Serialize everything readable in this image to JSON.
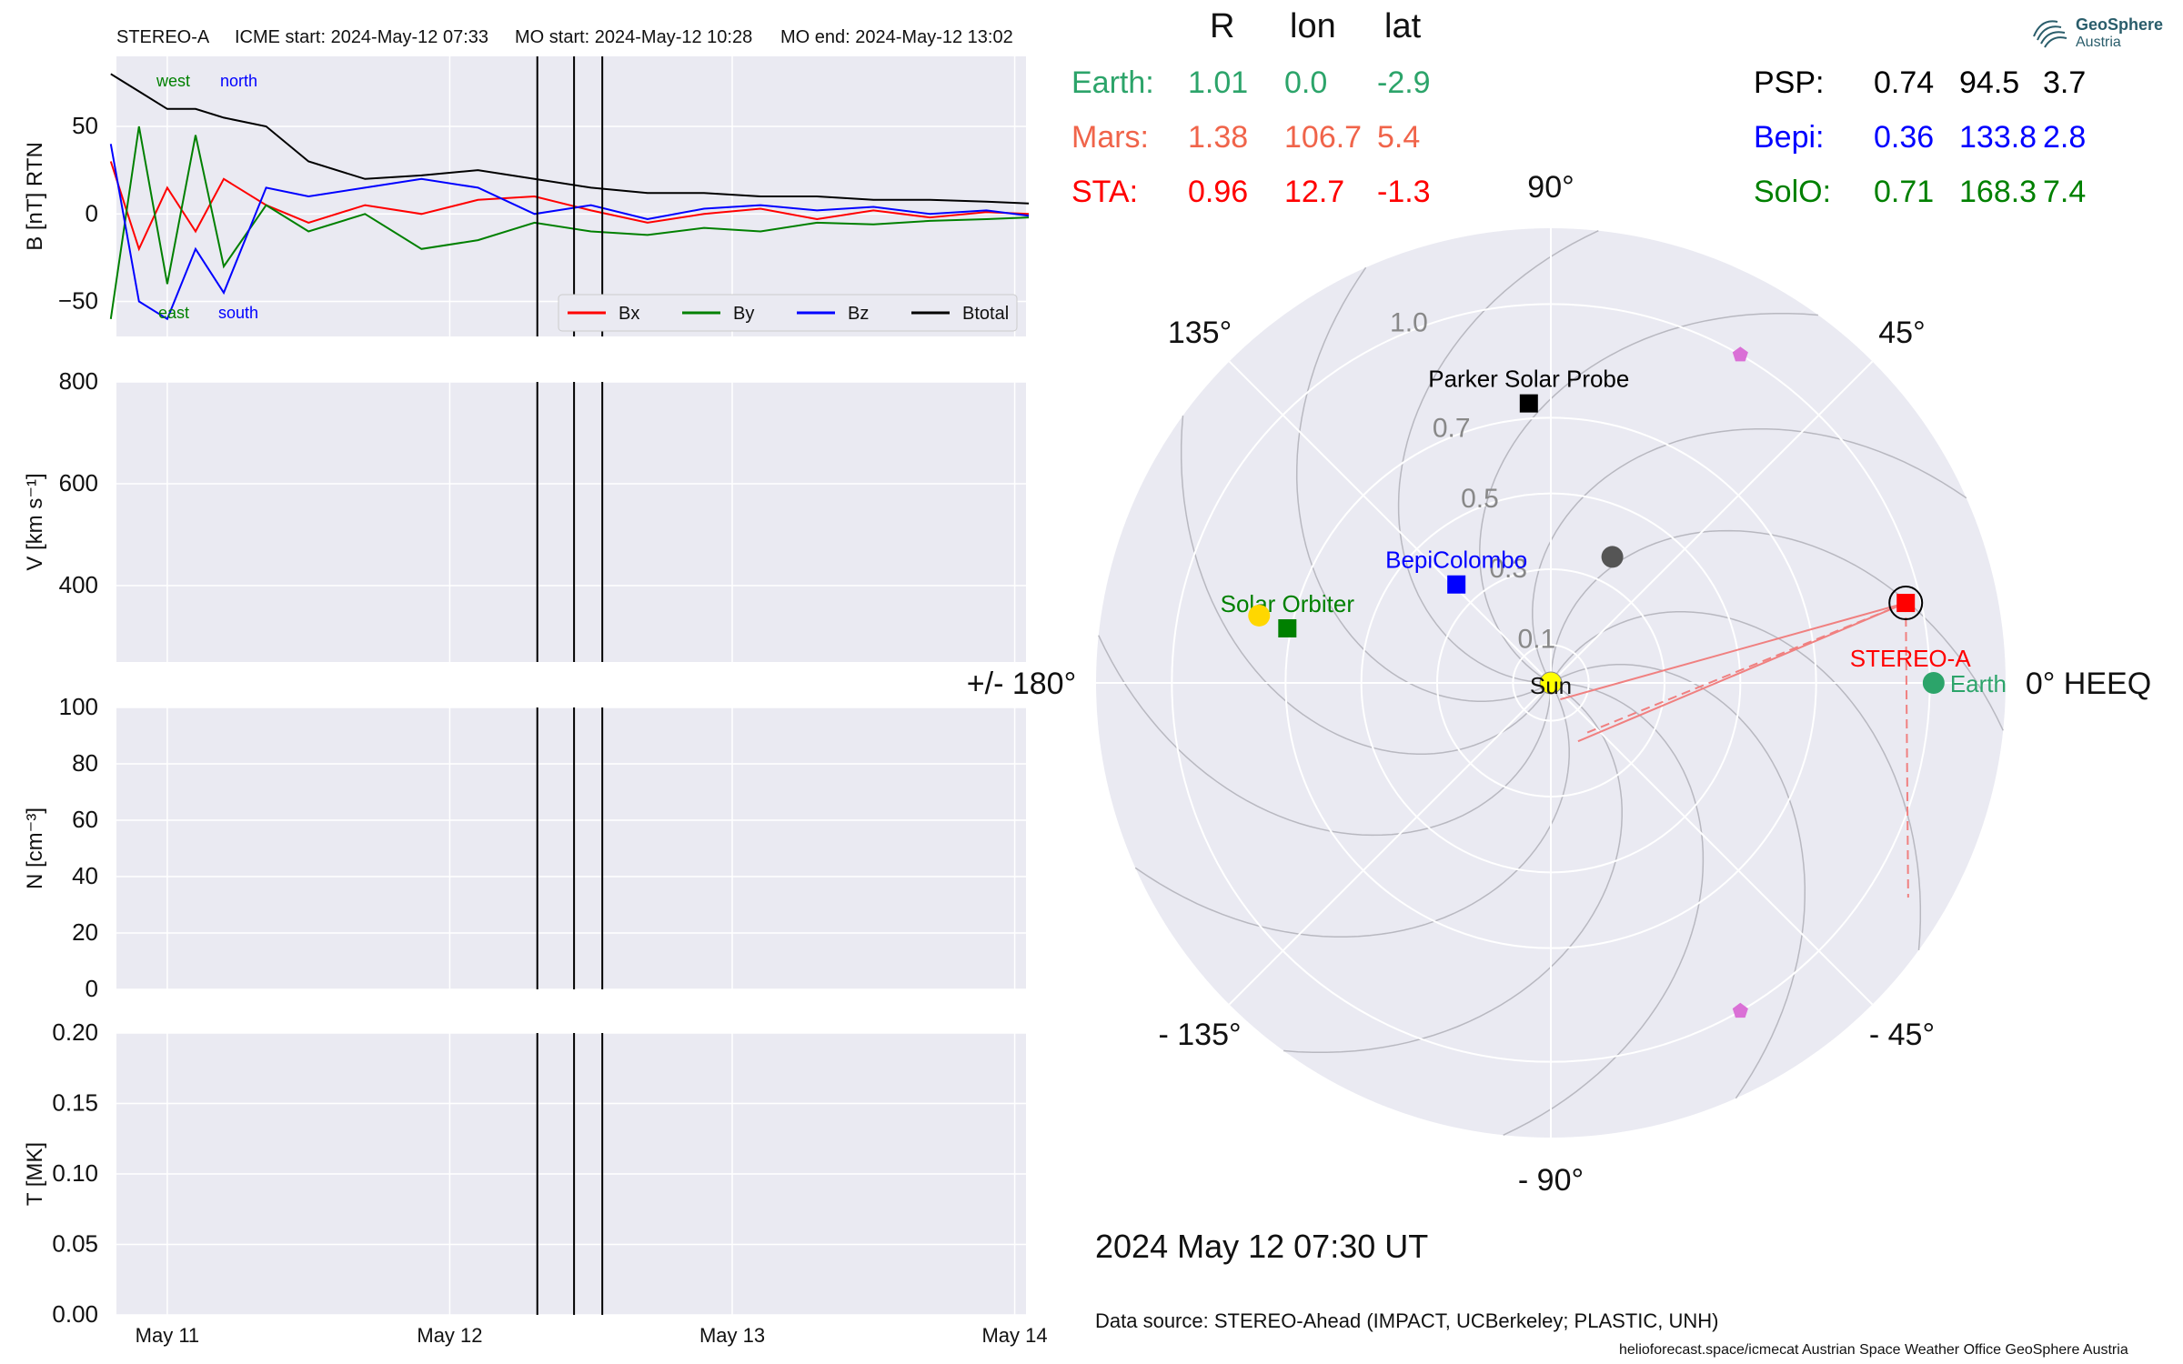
{
  "header": {
    "spacecraft": "STEREO-A",
    "icme_start": "ICME start: 2024-May-12 07:33",
    "mo_start": "MO start: 2024-May-12 10:28",
    "mo_end": "MO end: 2024-May-12 13:02"
  },
  "columns": {
    "r": "R",
    "lon": "lon",
    "lat": "lat"
  },
  "positions": [
    {
      "name": "Earth:",
      "r": "1.01",
      "lon": "0.0",
      "lat": "-2.9",
      "color": "#2ca46a"
    },
    {
      "name": "Mars:",
      "r": "1.38",
      "lon": "106.7",
      "lat": "5.4",
      "color": "#f0644a"
    },
    {
      "name": "STA:",
      "r": "0.96",
      "lon": "12.7",
      "lat": "-1.3",
      "color": "#ff0000"
    },
    {
      "name": "PSP:",
      "r": "0.74",
      "lon": "94.5",
      "lat": "3.7",
      "color": "#000000"
    },
    {
      "name": "Bepi:",
      "r": "0.36",
      "lon": "133.8",
      "lat": "2.8",
      "color": "#0000ff"
    },
    {
      "name": "SolO:",
      "r": "0.71",
      "lon": "168.3",
      "lat": "7.4",
      "color": "#008000"
    }
  ],
  "logo": {
    "line1": "GeoSphere",
    "line2": "Austria"
  },
  "timestamp": "2024 May 12  07:30 UT",
  "data_source": "Data source: STEREO-Ahead (IMPACT, UCBerkeley; PLASTIC, UNH)",
  "footer": "helioforecast.space/icmecat   Austrian Space Weather Office   GeoSphere Austria",
  "chart_data": [
    {
      "type": "line",
      "ylabel": "B [nT] RTN",
      "ylim": [
        -70,
        90
      ],
      "yticks": [
        "50",
        "0",
        "−50"
      ],
      "x_ticks": [
        "May 11",
        "May 12",
        "May 13",
        "May 14"
      ],
      "annotations": {
        "west": "west",
        "north": "north",
        "east": "east",
        "south": "south"
      },
      "legend": {
        "position": "lower-right",
        "entries": [
          "Bx",
          "By",
          "Bz",
          "Btotal"
        ]
      },
      "series": [
        {
          "name": "Bx",
          "color": "#ff0000",
          "x": [
            10.8,
            10.9,
            11.0,
            11.1,
            11.2,
            11.35,
            11.5,
            11.7,
            11.9,
            12.1,
            12.3,
            12.5,
            12.7,
            12.9,
            13.1,
            13.3,
            13.5,
            13.7,
            13.9,
            14.05
          ],
          "values": [
            30,
            -20,
            15,
            -10,
            20,
            5,
            -5,
            5,
            0,
            8,
            10,
            2,
            -5,
            0,
            3,
            -3,
            2,
            -2,
            1,
            0
          ]
        },
        {
          "name": "By",
          "color": "#008000",
          "x": [
            10.8,
            10.9,
            11.0,
            11.1,
            11.2,
            11.35,
            11.5,
            11.7,
            11.9,
            12.1,
            12.3,
            12.5,
            12.7,
            12.9,
            13.1,
            13.3,
            13.5,
            13.7,
            13.9,
            14.05
          ],
          "values": [
            -60,
            50,
            -40,
            45,
            -30,
            5,
            -10,
            0,
            -20,
            -15,
            -5,
            -10,
            -12,
            -8,
            -10,
            -5,
            -6,
            -4,
            -3,
            -2
          ]
        },
        {
          "name": "Bz",
          "color": "#0000ff",
          "x": [
            10.8,
            10.9,
            11.0,
            11.1,
            11.2,
            11.35,
            11.5,
            11.7,
            11.9,
            12.1,
            12.3,
            12.5,
            12.7,
            12.9,
            13.1,
            13.3,
            13.5,
            13.7,
            13.9,
            14.05
          ],
          "values": [
            40,
            -50,
            -60,
            -20,
            -45,
            15,
            10,
            15,
            20,
            15,
            0,
            5,
            -3,
            3,
            5,
            2,
            4,
            0,
            2,
            -1
          ]
        },
        {
          "name": "Btotal",
          "color": "#000000",
          "x": [
            10.8,
            10.9,
            11.0,
            11.1,
            11.2,
            11.35,
            11.5,
            11.7,
            11.9,
            12.1,
            12.3,
            12.5,
            12.7,
            12.9,
            13.1,
            13.3,
            13.5,
            13.7,
            13.9,
            14.05
          ],
          "values": [
            80,
            70,
            60,
            60,
            55,
            50,
            30,
            20,
            22,
            25,
            20,
            15,
            12,
            12,
            10,
            10,
            8,
            8,
            7,
            6
          ]
        }
      ],
      "vlines": [
        12.31,
        12.44,
        12.54
      ]
    },
    {
      "type": "line",
      "ylabel": "V [km s⁻¹]",
      "ylim": [
        250,
        800
      ],
      "yticks": [
        "800",
        "600",
        "400"
      ],
      "x_ticks": [
        "May 11",
        "May 12",
        "May 13",
        "May 14"
      ],
      "series": [],
      "vlines": [
        12.31,
        12.44,
        12.54
      ]
    },
    {
      "type": "line",
      "ylabel": "N [cm⁻³]",
      "ylim": [
        0,
        100
      ],
      "yticks": [
        "100",
        "80",
        "60",
        "40",
        "20",
        "0"
      ],
      "x_ticks": [
        "May 11",
        "May 12",
        "May 13",
        "May 14"
      ],
      "series": [],
      "vlines": [
        12.31,
        12.44,
        12.54
      ]
    },
    {
      "type": "line",
      "ylabel": "T [MK]",
      "ylim": [
        0,
        0.2
      ],
      "yticks": [
        "0.20",
        "0.15",
        "0.10",
        "0.05",
        "0.00"
      ],
      "x_ticks": [
        "May 11",
        "May 12",
        "May 13",
        "May 14"
      ],
      "series": [],
      "vlines": [
        12.31,
        12.44,
        12.54
      ]
    },
    {
      "type": "scatter",
      "projection": "polar",
      "angle_labels": [
        "90°",
        "45°",
        "0° HEEQ",
        "- 45°",
        "- 90°",
        "- 135°",
        "+/- 180°",
        "135°"
      ],
      "radial_labels": [
        "0.1",
        "0.3",
        "0.5",
        "0.7",
        "1.0"
      ],
      "bodies": [
        {
          "label": "Sun",
          "r": 0,
          "lon": 0,
          "color": "#ffff00",
          "marker": "circle"
        },
        {
          "label": "Earth",
          "r": 1.01,
          "lon": 0.0,
          "color": "#2ca46a",
          "marker": "circle"
        },
        {
          "label": "STEREO-A",
          "r": 0.96,
          "lon": 12.7,
          "color": "#ff0000",
          "marker": "square"
        },
        {
          "label": "Parker Solar Probe",
          "r": 0.74,
          "lon": 94.5,
          "color": "#000000",
          "marker": "square"
        },
        {
          "label": "BepiColombo",
          "r": 0.36,
          "lon": 133.8,
          "color": "#0000ff",
          "marker": "square"
        },
        {
          "label": "Solar Orbiter",
          "r": 0.71,
          "lon": 168.3,
          "color": "#008000",
          "marker": "square"
        },
        {
          "label": "",
          "r": 0.79,
          "lon": 167.0,
          "color": "#ffd700",
          "marker": "circle"
        },
        {
          "label": "",
          "r": 0.37,
          "lon": 64.0,
          "color": "#555555",
          "marker": "circle"
        },
        {
          "label": "",
          "r": 1.0,
          "lon": 60.0,
          "color": "#da70d6",
          "marker": "pentagon"
        },
        {
          "label": "",
          "r": 1.0,
          "lon": -60.0,
          "color": "#da70d6",
          "marker": "pentagon"
        }
      ]
    }
  ]
}
